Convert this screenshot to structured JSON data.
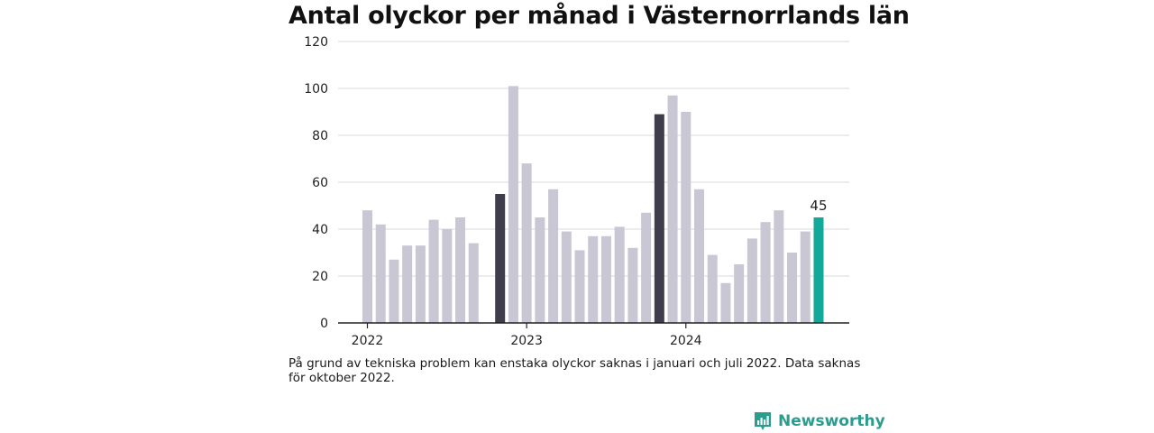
{
  "chart_data": {
    "type": "bar",
    "title": "Antal olyckor per månad i Västernorrlands län",
    "ylim": [
      0,
      120
    ],
    "yticks": [
      0,
      20,
      40,
      60,
      80,
      100,
      120
    ],
    "x_tick_labels": [
      {
        "label": "2022",
        "month": "2022-01"
      },
      {
        "label": "2023",
        "month": "2023-01"
      },
      {
        "label": "2024",
        "month": "2024-01"
      }
    ],
    "months": [
      "2022-01",
      "2022-02",
      "2022-03",
      "2022-04",
      "2022-05",
      "2022-06",
      "2022-07",
      "2022-08",
      "2022-09",
      "2022-10",
      "2022-11",
      "2022-12",
      "2023-01",
      "2023-02",
      "2023-03",
      "2023-04",
      "2023-05",
      "2023-06",
      "2023-07",
      "2023-08",
      "2023-09",
      "2023-10",
      "2023-11",
      "2023-12",
      "2024-01",
      "2024-02",
      "2024-03",
      "2024-04",
      "2024-05",
      "2024-06",
      "2024-07",
      "2024-08",
      "2024-09",
      "2024-10",
      "2024-11"
    ],
    "values": [
      48,
      42,
      27,
      33,
      33,
      44,
      40,
      45,
      34,
      null,
      55,
      101,
      68,
      45,
      57,
      39,
      31,
      37,
      37,
      41,
      32,
      47,
      89,
      97,
      90,
      57,
      29,
      17,
      25,
      36,
      43,
      48,
      30,
      39,
      45
    ],
    "highlight_months": [
      "2022-11",
      "2023-11"
    ],
    "latest_month": "2024-11",
    "latest_label": "45",
    "colors": {
      "default": "#c8c7d3",
      "highlight": "#3f3d4b",
      "latest": "#12a89a",
      "grid": "#d9d9d9",
      "axis": "#222222"
    }
  },
  "footnote": "På grund av tekniska problem kan enstaka olyckor saknas i januari och juli 2022. Data saknas för oktober 2022.",
  "brand": {
    "name": "Newsworthy",
    "color": "#2a9d8f",
    "icon": "chart-logo-icon"
  }
}
